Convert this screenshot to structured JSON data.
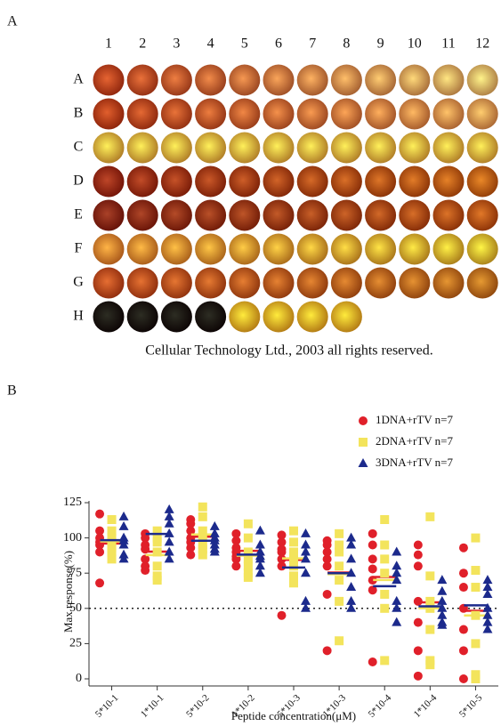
{
  "panel_a": {
    "label": "A",
    "columns": [
      "1",
      "2",
      "3",
      "4",
      "5",
      "6",
      "7",
      "8",
      "9",
      "10",
      "11",
      "12"
    ],
    "rows": [
      "A",
      "B",
      "C",
      "D",
      "E",
      "F",
      "G",
      "H"
    ],
    "caption": "Cellular Technology Ltd., 2003 all rights reserved."
  },
  "panel_b": {
    "label": "B"
  },
  "chart_data": {
    "type": "scatter",
    "y_label": "Max response(%)",
    "x_label": "Peptide concentration(μM)",
    "categories": [
      "5*10-1",
      "1*10-1",
      "5*10-2",
      "1*10-2",
      "5*10-3",
      "1*10-3",
      "5*10-4",
      "1*10-4",
      "5*10-5"
    ],
    "ylim": [
      0,
      125
    ],
    "yticks": [
      0,
      25,
      50,
      75,
      100,
      125
    ],
    "reference_line": 50,
    "legend": "top-right",
    "series": [
      {
        "name": "1DNA+rTV n=7",
        "color": "#e0202a",
        "marker": "circle",
        "values": [
          [
            117,
            105,
            100,
            97,
            95,
            90,
            68
          ],
          [
            103,
            100,
            95,
            92,
            85,
            80,
            77
          ],
          [
            113,
            110,
            105,
            100,
            97,
            93,
            88
          ],
          [
            103,
            98,
            93,
            90,
            87,
            85,
            80
          ],
          [
            102,
            97,
            92,
            90,
            85,
            80,
            45
          ],
          [
            98,
            95,
            90,
            85,
            80,
            60,
            20
          ],
          [
            103,
            95,
            85,
            78,
            70,
            63,
            12
          ],
          [
            95,
            88,
            80,
            55,
            40,
            20,
            2
          ],
          [
            93,
            75,
            65,
            50,
            35,
            20,
            0
          ]
        ]
      },
      {
        "name": "2DNA+rTV n=7",
        "color": "#f3e45c",
        "marker": "square",
        "values": [
          [
            113,
            105,
            100,
            97,
            93,
            90,
            85
          ],
          [
            105,
            100,
            97,
            90,
            80,
            73,
            70
          ],
          [
            122,
            115,
            105,
            100,
            95,
            92,
            88
          ],
          [
            110,
            100,
            90,
            85,
            80,
            75,
            72
          ],
          [
            105,
            97,
            90,
            85,
            80,
            73,
            68
          ],
          [
            103,
            95,
            90,
            80,
            70,
            55,
            27
          ],
          [
            113,
            95,
            85,
            75,
            60,
            50,
            13
          ],
          [
            115,
            73,
            55,
            50,
            35,
            13,
            10
          ],
          [
            100,
            77,
            65,
            45,
            25,
            3,
            0
          ]
        ]
      },
      {
        "name": "3DNA+rTV n=7",
        "color": "#1c2a8c",
        "marker": "triangle",
        "values": [
          [
            115,
            108,
            100,
            98,
            95,
            88,
            85
          ],
          [
            120,
            115,
            110,
            103,
            97,
            90,
            85
          ],
          [
            108,
            103,
            100,
            98,
            95,
            92,
            90
          ],
          [
            105,
            95,
            90,
            87,
            85,
            80,
            75
          ],
          [
            103,
            95,
            90,
            85,
            75,
            55,
            50
          ],
          [
            100,
            95,
            85,
            75,
            65,
            55,
            50
          ],
          [
            90,
            80,
            75,
            70,
            55,
            50,
            40
          ],
          [
            70,
            62,
            55,
            50,
            45,
            40,
            38
          ],
          [
            70,
            65,
            60,
            50,
            45,
            40,
            35
          ]
        ]
      }
    ]
  }
}
